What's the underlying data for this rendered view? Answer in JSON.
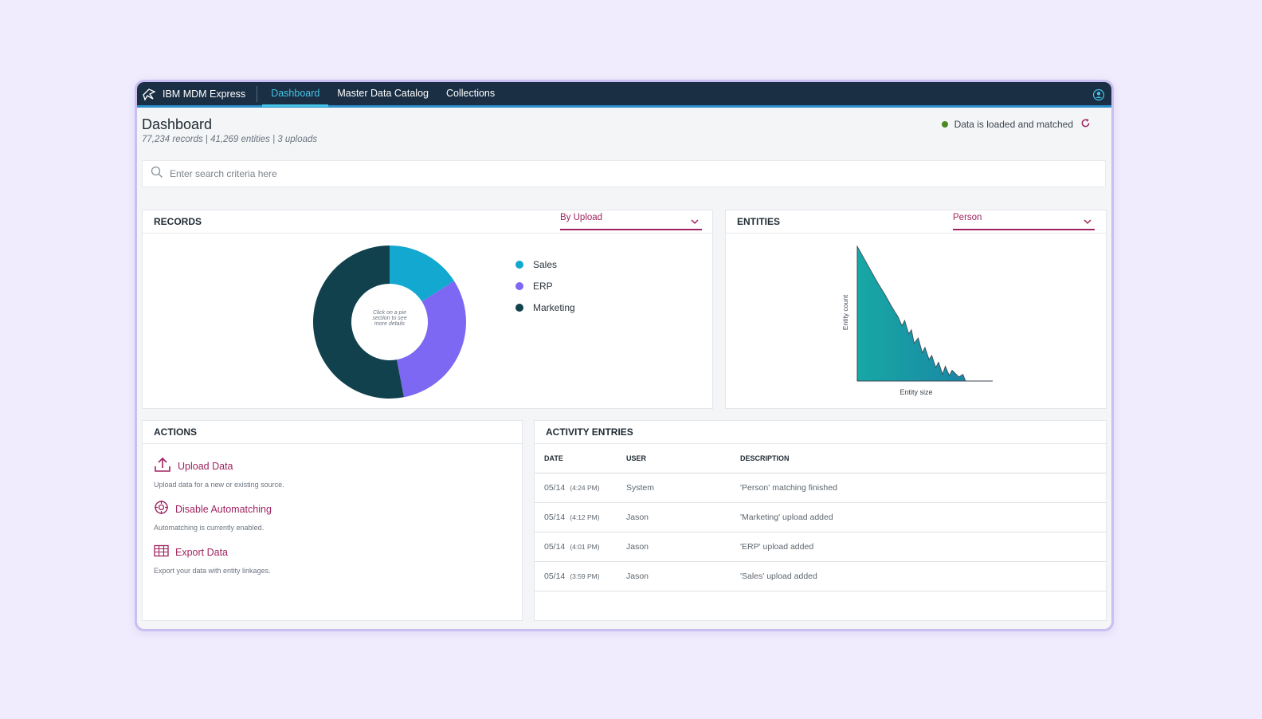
{
  "app": {
    "title": "IBM MDM Express"
  },
  "nav": {
    "tabs": [
      {
        "label": "Dashboard"
      },
      {
        "label": "Master Data Catalog"
      },
      {
        "label": "Collections"
      }
    ]
  },
  "header": {
    "title": "Dashboard",
    "subtitle": "77,234 records | 41,269 entities | 3 uploads",
    "status": "Data is loaded and matched"
  },
  "search": {
    "placeholder": "Enter search criteria here",
    "value": ""
  },
  "records": {
    "title": "RECORDS",
    "dropdown": "By Upload",
    "center_hint": "Click on a pie section to see more details"
  },
  "entities": {
    "title": "ENTITIES",
    "dropdown": "Person",
    "xlabel": "Entity size",
    "ylabel": "Entity count"
  },
  "chart_data": [
    {
      "type": "pie",
      "donut": true,
      "categories": [
        "Sales",
        "ERP",
        "Marketing"
      ],
      "values": [
        16,
        31,
        53
      ],
      "colors": [
        "#12a8d0",
        "#7d68f3",
        "#10414d"
      ],
      "legend_position": "right"
    },
    {
      "type": "area",
      "xlabel": "Entity size",
      "ylabel": "Entity count",
      "x": [
        0,
        5,
        10,
        15,
        20,
        25,
        28,
        30,
        33,
        35,
        38,
        40,
        42,
        45,
        48,
        50,
        53,
        55,
        58,
        60,
        63,
        65,
        68,
        70,
        75,
        78,
        80,
        100
      ],
      "y": [
        100,
        91,
        82,
        73,
        65,
        56,
        51,
        48,
        41,
        45,
        35,
        38,
        28,
        32,
        21,
        25,
        16,
        19,
        10,
        14,
        5,
        11,
        4,
        8,
        3,
        5,
        0,
        0
      ],
      "color": "#17a8a4"
    }
  ],
  "actions": {
    "title": "ACTIONS",
    "items": [
      {
        "label": "Upload Data",
        "desc": "Upload data for a new or existing source."
      },
      {
        "label": "Disable Automatching",
        "desc": "Automatching is currently enabled."
      },
      {
        "label": "Export Data",
        "desc": "Export your data with entity linkages."
      }
    ]
  },
  "activity": {
    "title": "ACTIVITY ENTRIES",
    "columns": [
      "DATE",
      "USER",
      "DESCRIPTION"
    ],
    "rows": [
      {
        "date": "05/14",
        "time": "(4:24 PM)",
        "user": "System",
        "desc": "'Person' matching finished"
      },
      {
        "date": "05/14",
        "time": "(4:12 PM)",
        "user": "Jason",
        "desc": "'Marketing' upload added"
      },
      {
        "date": "05/14",
        "time": "(4:01 PM)",
        "user": "Jason",
        "desc": "'ERP' upload added"
      },
      {
        "date": "05/14",
        "time": "(3:59 PM)",
        "user": "Jason",
        "desc": "'Sales' upload added"
      }
    ]
  }
}
